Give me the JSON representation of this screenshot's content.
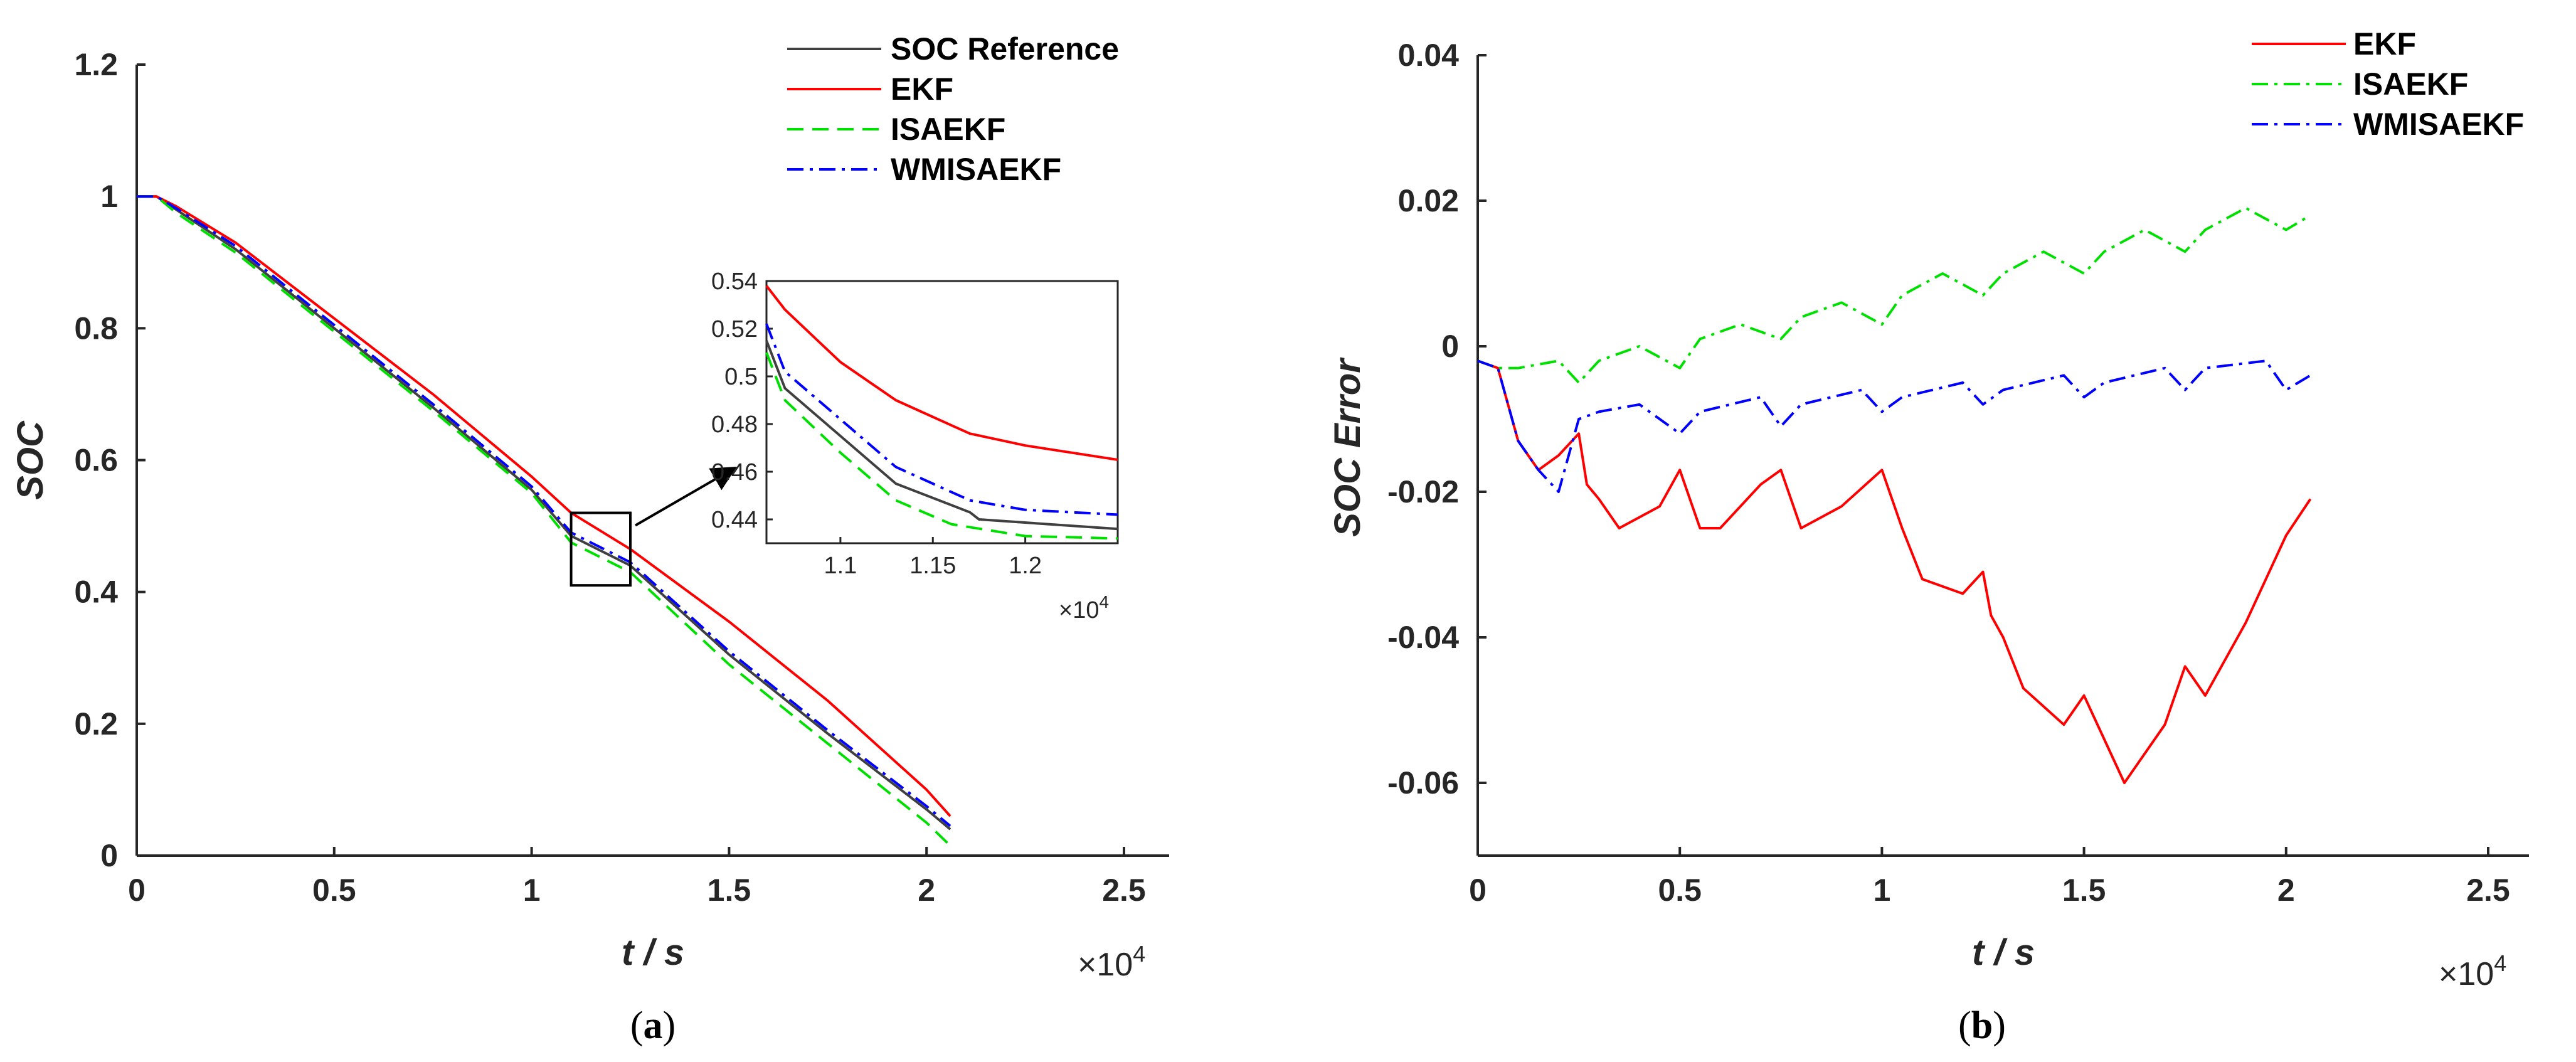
{
  "chart_data": [
    {
      "id": "a",
      "type": "line",
      "caption_letter": "a",
      "xlabel": "t / s",
      "ylabel": "SOC",
      "x_multiplier": "×10",
      "x_multiplier_exp": "4",
      "xlim": [
        0,
        2.5
      ],
      "ylim": [
        0,
        1.2
      ],
      "xticks": [
        0,
        0.5,
        1,
        1.5,
        2,
        2.5
      ],
      "xtick_labels": [
        "0",
        "0.5",
        "1",
        "1.5",
        "2",
        "2.5"
      ],
      "yticks": [
        0,
        0.2,
        0.4,
        0.6,
        0.8,
        1,
        1.2
      ],
      "ytick_labels": [
        "0",
        "0.2",
        "0.4",
        "0.6",
        "0.8",
        "1",
        "1.2"
      ],
      "legend": "top-right",
      "series": [
        {
          "name": "SOC Reference",
          "color": "#404040",
          "dash": "solid",
          "x": [
            0,
            0.05,
            0.1,
            0.25,
            0.5,
            0.75,
            1.0,
            1.1,
            1.25,
            1.5,
            1.75,
            2.0,
            2.06
          ],
          "y": [
            1.0,
            1.0,
            0.98,
            0.92,
            0.8,
            0.68,
            0.555,
            0.485,
            0.44,
            0.305,
            0.185,
            0.07,
            0.04
          ]
        },
        {
          "name": "EKF",
          "color": "#ff0000",
          "dash": "solid",
          "x": [
            0,
            0.05,
            0.1,
            0.25,
            0.5,
            0.75,
            1.0,
            1.1,
            1.25,
            1.5,
            1.75,
            2.0,
            2.06
          ],
          "y": [
            1.0,
            1.0,
            0.985,
            0.93,
            0.815,
            0.7,
            0.575,
            0.52,
            0.465,
            0.355,
            0.235,
            0.1,
            0.06
          ]
        },
        {
          "name": "ISAEKF",
          "color": "#00e000",
          "dash": "dashed",
          "x": [
            0,
            0.05,
            0.1,
            0.25,
            0.5,
            0.75,
            1.0,
            1.1,
            1.25,
            1.5,
            1.75,
            2.0,
            2.06
          ],
          "y": [
            1.0,
            1.0,
            0.975,
            0.915,
            0.795,
            0.675,
            0.55,
            0.475,
            0.43,
            0.29,
            0.17,
            0.05,
            0.015
          ]
        },
        {
          "name": "WMISAEKF",
          "color": "#0000ff",
          "dash": "dashdot",
          "x": [
            0,
            0.05,
            0.1,
            0.25,
            0.5,
            0.75,
            1.0,
            1.1,
            1.25,
            1.5,
            1.75,
            2.0,
            2.06
          ],
          "y": [
            1.0,
            1.0,
            0.982,
            0.925,
            0.805,
            0.685,
            0.56,
            0.49,
            0.445,
            0.31,
            0.19,
            0.075,
            0.045
          ]
        }
      ],
      "inset": {
        "xlim": [
          1.06,
          1.25
        ],
        "ylim": [
          0.43,
          0.54
        ],
        "xticks": [
          1.1,
          1.15,
          1.2
        ],
        "xtick_labels": [
          "1.1",
          "1.15",
          "1.2"
        ],
        "yticks": [
          0.44,
          0.46,
          0.48,
          0.5,
          0.52,
          0.54
        ],
        "ytick_labels": [
          "0.44",
          "0.46",
          "0.48",
          "0.5",
          "0.52",
          "0.54"
        ],
        "x_multiplier": "×10",
        "x_multiplier_exp": "4",
        "zoom_box": {
          "x": [
            1.1,
            1.25
          ],
          "y": [
            0.41,
            0.52
          ]
        },
        "series": [
          {
            "name": "SOC Reference",
            "x": [
              1.06,
              1.07,
              1.1,
              1.13,
              1.17,
              1.175,
              1.25
            ],
            "y": [
              0.515,
              0.495,
              0.475,
              0.455,
              0.443,
              0.44,
              0.436
            ]
          },
          {
            "name": "EKF",
            "x": [
              1.06,
              1.07,
              1.1,
              1.13,
              1.17,
              1.2,
              1.25
            ],
            "y": [
              0.538,
              0.528,
              0.506,
              0.49,
              0.476,
              0.471,
              0.465
            ]
          },
          {
            "name": "ISAEKF",
            "x": [
              1.06,
              1.07,
              1.1,
              1.13,
              1.16,
              1.2,
              1.25
            ],
            "y": [
              0.51,
              0.49,
              0.468,
              0.448,
              0.438,
              0.433,
              0.432
            ]
          },
          {
            "name": "WMISAEKF",
            "x": [
              1.06,
              1.07,
              1.1,
              1.13,
              1.17,
              1.2,
              1.25
            ],
            "y": [
              0.522,
              0.502,
              0.482,
              0.462,
              0.448,
              0.444,
              0.442
            ]
          }
        ]
      }
    },
    {
      "id": "b",
      "type": "line",
      "caption_letter": "b",
      "xlabel": "t / s",
      "ylabel": "SOC Error",
      "x_multiplier": "×10",
      "x_multiplier_exp": "4",
      "xlim": [
        0,
        2.5
      ],
      "ylim": [
        -0.07,
        0.04
      ],
      "xticks": [
        0,
        0.5,
        1,
        1.5,
        2,
        2.5
      ],
      "xtick_labels": [
        "0",
        "0.5",
        "1",
        "1.5",
        "2",
        "2.5"
      ],
      "yticks": [
        -0.06,
        -0.04,
        -0.02,
        0,
        0.02,
        0.04
      ],
      "ytick_labels": [
        "-0.06",
        "-0.04",
        "-0.02",
        "0",
        "0.02",
        "0.04"
      ],
      "legend": "top-right",
      "series": [
        {
          "name": "EKF",
          "color": "#ff0000",
          "dash": "solid",
          "x": [
            0,
            0.05,
            0.1,
            0.15,
            0.2,
            0.25,
            0.27,
            0.3,
            0.35,
            0.45,
            0.5,
            0.55,
            0.6,
            0.7,
            0.75,
            0.8,
            0.9,
            1.0,
            1.05,
            1.1,
            1.2,
            1.25,
            1.27,
            1.3,
            1.35,
            1.45,
            1.5,
            1.55,
            1.6,
            1.7,
            1.75,
            1.8,
            1.9,
            2.0,
            2.06
          ],
          "y": [
            -0.002,
            -0.003,
            -0.013,
            -0.017,
            -0.015,
            -0.012,
            -0.019,
            -0.021,
            -0.025,
            -0.022,
            -0.017,
            -0.025,
            -0.025,
            -0.019,
            -0.017,
            -0.025,
            -0.022,
            -0.017,
            -0.025,
            -0.032,
            -0.034,
            -0.031,
            -0.037,
            -0.04,
            -0.047,
            -0.052,
            -0.048,
            -0.054,
            -0.06,
            -0.052,
            -0.044,
            -0.048,
            -0.038,
            -0.026,
            -0.021
          ]
        },
        {
          "name": "ISAEKF",
          "color": "#00e000",
          "dash": "dashdot",
          "x": [
            0,
            0.05,
            0.1,
            0.2,
            0.25,
            0.3,
            0.4,
            0.5,
            0.55,
            0.65,
            0.75,
            0.8,
            0.9,
            1.0,
            1.05,
            1.15,
            1.25,
            1.3,
            1.4,
            1.5,
            1.55,
            1.65,
            1.75,
            1.8,
            1.9,
            2.0,
            2.06
          ],
          "y": [
            -0.002,
            -0.003,
            -0.003,
            -0.002,
            -0.005,
            -0.002,
            0.0,
            -0.003,
            0.001,
            0.003,
            0.001,
            0.004,
            0.006,
            0.003,
            0.007,
            0.01,
            0.007,
            0.01,
            0.013,
            0.01,
            0.013,
            0.016,
            0.013,
            0.016,
            0.019,
            0.016,
            0.018
          ]
        },
        {
          "name": "WMISAEKF",
          "color": "#0000ff",
          "dash": "dashdot",
          "x": [
            0,
            0.05,
            0.1,
            0.15,
            0.2,
            0.25,
            0.3,
            0.4,
            0.5,
            0.55,
            0.7,
            0.75,
            0.8,
            0.95,
            1.0,
            1.05,
            1.2,
            1.25,
            1.3,
            1.45,
            1.5,
            1.55,
            1.7,
            1.75,
            1.8,
            1.95,
            2.0,
            2.06
          ],
          "y": [
            -0.002,
            -0.003,
            -0.013,
            -0.017,
            -0.02,
            -0.01,
            -0.009,
            -0.008,
            -0.012,
            -0.009,
            -0.007,
            -0.011,
            -0.008,
            -0.006,
            -0.009,
            -0.007,
            -0.005,
            -0.008,
            -0.006,
            -0.004,
            -0.007,
            -0.005,
            -0.003,
            -0.006,
            -0.003,
            -0.002,
            -0.006,
            -0.004
          ]
        }
      ]
    }
  ]
}
